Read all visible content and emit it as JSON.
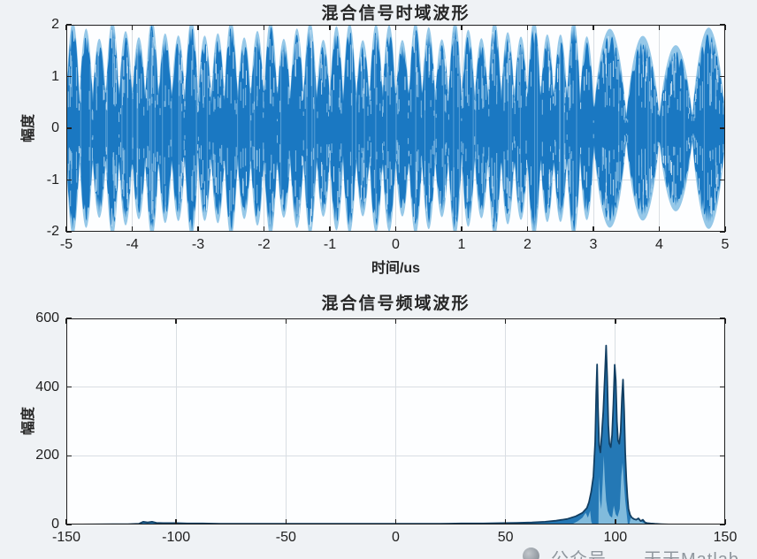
{
  "figure": {
    "background": "#eff2f5",
    "plot_background": "#fdfeff",
    "axis_color": "#1f1f1f",
    "grid_color": "#d9dee3",
    "tick_label_color": "#1f1f1f",
    "watermark": {
      "icon": "gray-circle-logo",
      "text": "公众号——天天Matlab",
      "color": "#8f979e"
    }
  },
  "chart_data": [
    {
      "type": "line",
      "title": "混合信号时域波形",
      "xlabel": "时间/us",
      "ylabel": "幅度",
      "xlim": [
        -5,
        5
      ],
      "ylim": [
        -2,
        2
      ],
      "xticks": [
        -5,
        -4,
        -3,
        -2,
        -1,
        0,
        1,
        2,
        3,
        4,
        5
      ],
      "yticks": [
        2,
        1,
        0,
        -1,
        -2
      ],
      "grid": true,
      "legend": "none",
      "colors": {
        "main": "#1a78c2",
        "halo": "#96c8e8",
        "streak": "#cde9f8",
        "streak_bright": "#f2fafe"
      },
      "signal": {
        "kind": "amplitude-modulated mixed signal (beat envelope)",
        "segments": [
          {
            "t_start": -5,
            "t_end": 3,
            "lobe_period_us": 0.2,
            "peak_amplitude": 2.0,
            "pinch_amplitude": 0.5
          },
          {
            "t_start": 3,
            "t_end": 5,
            "lobe_period_us": 0.5,
            "peak_amplitude": 1.85,
            "pinch_amplitude": 0.15
          }
        ]
      }
    },
    {
      "type": "area",
      "title": "混合信号频域波形",
      "xlabel": "",
      "ylabel": "幅度",
      "xlim": [
        -150,
        150
      ],
      "ylim": [
        0,
        600
      ],
      "xticks": [
        -150,
        -100,
        -50,
        0,
        50,
        100,
        150
      ],
      "yticks": [
        0,
        200,
        400,
        600
      ],
      "grid": true,
      "legend": "none",
      "colors": {
        "fill": "#2478b5",
        "outline": "#123f63",
        "light": "#8cc2e0"
      },
      "points": [
        [
          -150,
          0
        ],
        [
          -122,
          1
        ],
        [
          -117,
          2
        ],
        [
          -115,
          8
        ],
        [
          -113,
          6
        ],
        [
          -111,
          8
        ],
        [
          -109,
          5
        ],
        [
          -106,
          4
        ],
        [
          -100,
          4
        ],
        [
          -95,
          3
        ],
        [
          -88,
          3
        ],
        [
          -80,
          2
        ],
        [
          -70,
          2
        ],
        [
          -60,
          2
        ],
        [
          -50,
          2
        ],
        [
          -40,
          2
        ],
        [
          -30,
          2
        ],
        [
          -20,
          2
        ],
        [
          -10,
          2
        ],
        [
          0,
          2
        ],
        [
          10,
          2
        ],
        [
          20,
          2
        ],
        [
          30,
          3
        ],
        [
          40,
          3
        ],
        [
          48,
          4
        ],
        [
          55,
          5
        ],
        [
          62,
          6
        ],
        [
          68,
          8
        ],
        [
          73,
          11
        ],
        [
          78,
          16
        ],
        [
          82,
          24
        ],
        [
          85,
          34
        ],
        [
          87,
          48
        ],
        [
          88,
          65
        ],
        [
          89,
          95
        ],
        [
          90,
          140
        ],
        [
          90.8,
          240
        ],
        [
          91.3,
          380
        ],
        [
          91.7,
          466
        ],
        [
          92.1,
          340
        ],
        [
          92.6,
          230
        ],
        [
          93.2,
          210
        ],
        [
          93.8,
          260
        ],
        [
          94.5,
          330
        ],
        [
          95.2,
          430
        ],
        [
          95.8,
          521
        ],
        [
          96.3,
          430
        ],
        [
          96.8,
          290
        ],
        [
          97.3,
          235
        ],
        [
          97.9,
          225
        ],
        [
          98.5,
          260
        ],
        [
          99.1,
          350
        ],
        [
          99.7,
          465
        ],
        [
          100.2,
          420
        ],
        [
          100.7,
          300
        ],
        [
          101.2,
          245
        ],
        [
          101.8,
          235
        ],
        [
          102.4,
          270
        ],
        [
          103,
          370
        ],
        [
          103.5,
          422
        ],
        [
          104,
          330
        ],
        [
          104.5,
          210
        ],
        [
          105,
          130
        ],
        [
          105.5,
          80
        ],
        [
          106,
          45
        ],
        [
          106.7,
          28
        ],
        [
          107.5,
          20
        ],
        [
          108.5,
          16
        ],
        [
          109.5,
          14
        ],
        [
          110.5,
          18
        ],
        [
          111.5,
          10
        ],
        [
          112.5,
          14
        ],
        [
          113.5,
          6
        ],
        [
          114.5,
          4
        ],
        [
          116,
          3
        ],
        [
          118,
          2
        ],
        [
          121,
          1
        ],
        [
          126,
          0
        ],
        [
          150,
          0
        ]
      ],
      "light_patches": [
        [
          [
            80,
            0
          ],
          [
            83,
            10
          ],
          [
            85,
            20
          ],
          [
            86.5,
            34
          ],
          [
            87.5,
            20
          ],
          [
            88.5,
            40
          ],
          [
            89,
            10
          ],
          [
            89.5,
            0
          ]
        ],
        [
          [
            92.3,
            0
          ],
          [
            92.5,
            140
          ],
          [
            93,
            70
          ],
          [
            93.6,
            45
          ],
          [
            94.2,
            120
          ],
          [
            94.7,
            200
          ],
          [
            95.2,
            130
          ],
          [
            95.8,
            70
          ],
          [
            96.5,
            40
          ],
          [
            97.5,
            25
          ],
          [
            98.5,
            20
          ],
          [
            99.3,
            55
          ],
          [
            100.1,
            30
          ],
          [
            101,
            22
          ],
          [
            102,
            45
          ],
          [
            102.7,
            140
          ],
          [
            103.3,
            180
          ],
          [
            103.9,
            120
          ],
          [
            104.5,
            70
          ],
          [
            105.1,
            35
          ],
          [
            105.7,
            0
          ]
        ],
        [
          [
            106.3,
            0
          ],
          [
            107,
            20
          ],
          [
            108.5,
            13
          ],
          [
            110,
            17
          ],
          [
            111.5,
            9
          ],
          [
            113,
            5
          ],
          [
            114.5,
            0
          ]
        ]
      ]
    }
  ]
}
